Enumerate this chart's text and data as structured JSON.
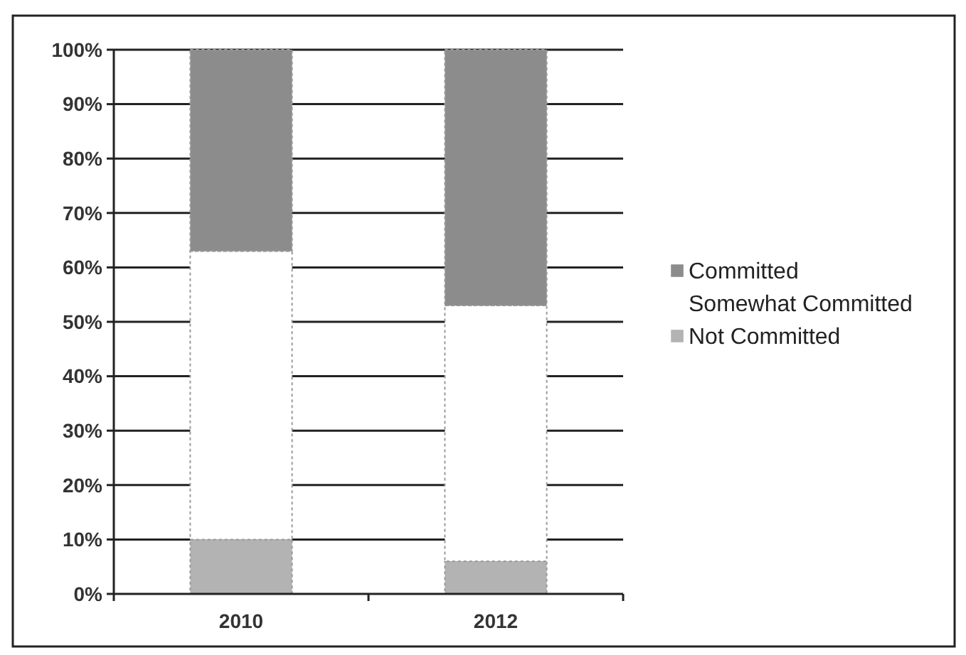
{
  "chart_data": {
    "type": "bar",
    "stacked": true,
    "categories": [
      "2010",
      "2012"
    ],
    "series": [
      {
        "name": "Not Committed",
        "color": "#b3b3b3",
        "values": [
          10,
          6
        ]
      },
      {
        "name": "Somewhat Committed",
        "color": "#ffffff",
        "values": [
          53,
          47
        ]
      },
      {
        "name": "Committed",
        "color": "#8c8c8c",
        "values": [
          37,
          47
        ]
      }
    ],
    "ylim": [
      0,
      100
    ],
    "yticks": [
      {
        "value": 0,
        "label": "0%"
      },
      {
        "value": 10,
        "label": "10%"
      },
      {
        "value": 20,
        "label": "20%"
      },
      {
        "value": 30,
        "label": "30%"
      },
      {
        "value": 40,
        "label": "40%"
      },
      {
        "value": 50,
        "label": "50%"
      },
      {
        "value": 60,
        "label": "60%"
      },
      {
        "value": 70,
        "label": "70%"
      },
      {
        "value": 80,
        "label": "80%"
      },
      {
        "value": 90,
        "label": "90%"
      },
      {
        "value": 100,
        "label": "100%"
      }
    ],
    "grid": "y",
    "legend": "right"
  }
}
